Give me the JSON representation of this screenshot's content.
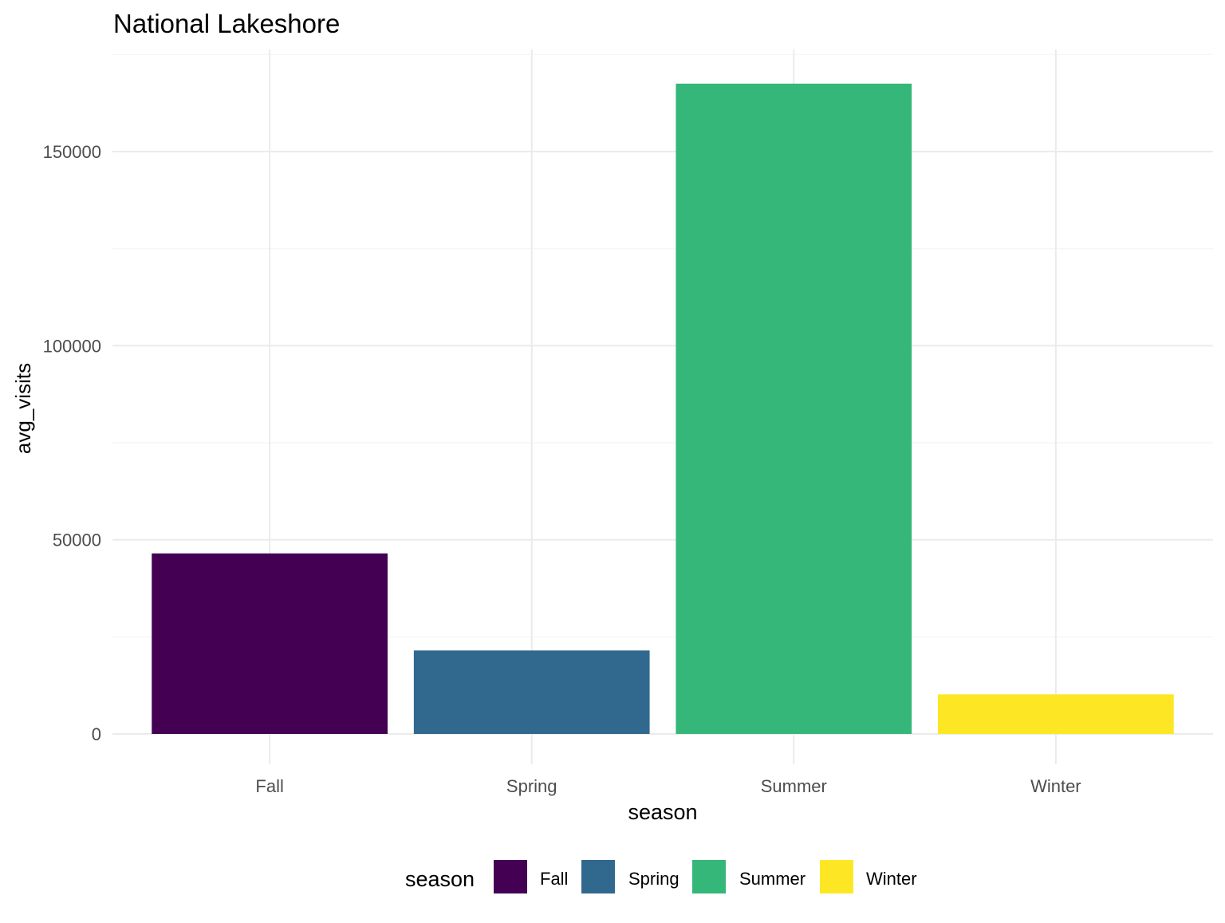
{
  "chart_data": {
    "type": "bar",
    "title": "National Lakeshore",
    "xlabel": "season",
    "ylabel": "avg_visits",
    "categories": [
      "Fall",
      "Spring",
      "Summer",
      "Winter"
    ],
    "values": [
      46500,
      21500,
      167500,
      10200
    ],
    "colors": [
      "#440154",
      "#31688E",
      "#35B779",
      "#FDE725"
    ],
    "ylim": [
      0,
      175000
    ],
    "yticks": [
      0,
      50000,
      100000,
      150000
    ],
    "yticks_labels": [
      "0",
      "50000",
      "100000",
      "150000"
    ],
    "grid": true,
    "legend": {
      "title": "season",
      "position": "bottom",
      "entries": [
        "Fall",
        "Spring",
        "Summer",
        "Winter"
      ]
    }
  }
}
